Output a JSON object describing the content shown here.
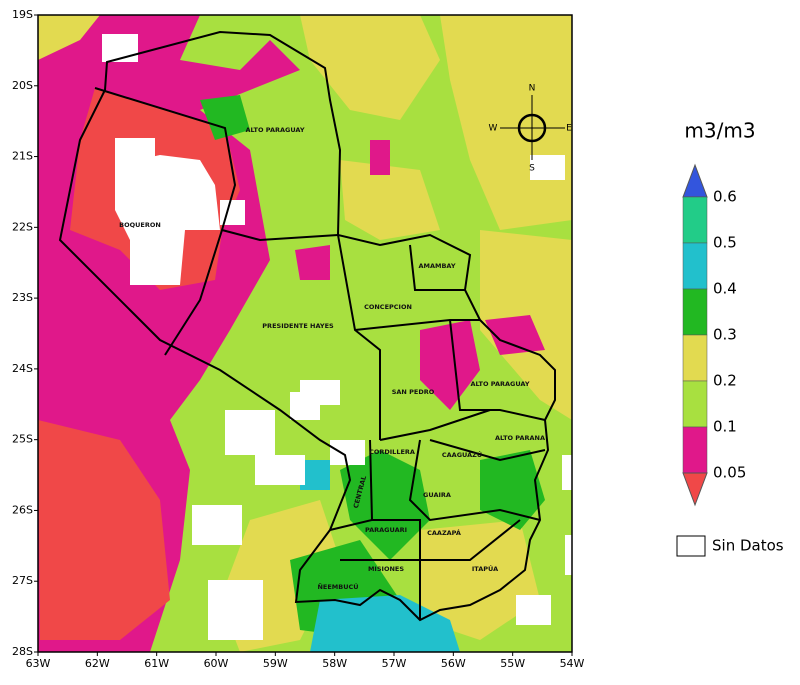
{
  "map": {
    "lat_labels": [
      "19S",
      "20S",
      "21S",
      "22S",
      "23S",
      "24S",
      "25S",
      "26S",
      "27S",
      "28S"
    ],
    "lon_labels": [
      "63W",
      "62W",
      "61W",
      "60W",
      "59W",
      "58W",
      "57W",
      "56W",
      "55W",
      "54W"
    ],
    "regions": [
      "ALTO PARAGUAY",
      "BOQUERON",
      "AMAMBAY",
      "CONCEPCION",
      "PRESIDENTE HAYES",
      "SAN PEDRO",
      "ALTO PARAGUAY",
      "ALTO PARANA",
      "CORDILLERA",
      "CAAGUAZÚ",
      "CENTRAL",
      "GUAIRA",
      "PARAGUARI",
      "CAAZAPÁ",
      "MISIONES",
      "ITAPÚA",
      "ÑEEMBUCÚ"
    ],
    "compass": [
      "N",
      "S",
      "W",
      "E"
    ],
    "legend": {
      "title": "m3/m3",
      "ticks": [
        "0.6",
        "0.5",
        "0.4",
        "0.3",
        "0.2",
        "0.1",
        "0.05"
      ],
      "top_color": "#3355dd",
      "colors": [
        "#22cc88",
        "#22c0cc",
        "#22b822",
        "#e2da50",
        "#a8e040",
        "#e0188a"
      ],
      "bottom_color": "#f04848",
      "no_data": "Sin Datos"
    }
  }
}
